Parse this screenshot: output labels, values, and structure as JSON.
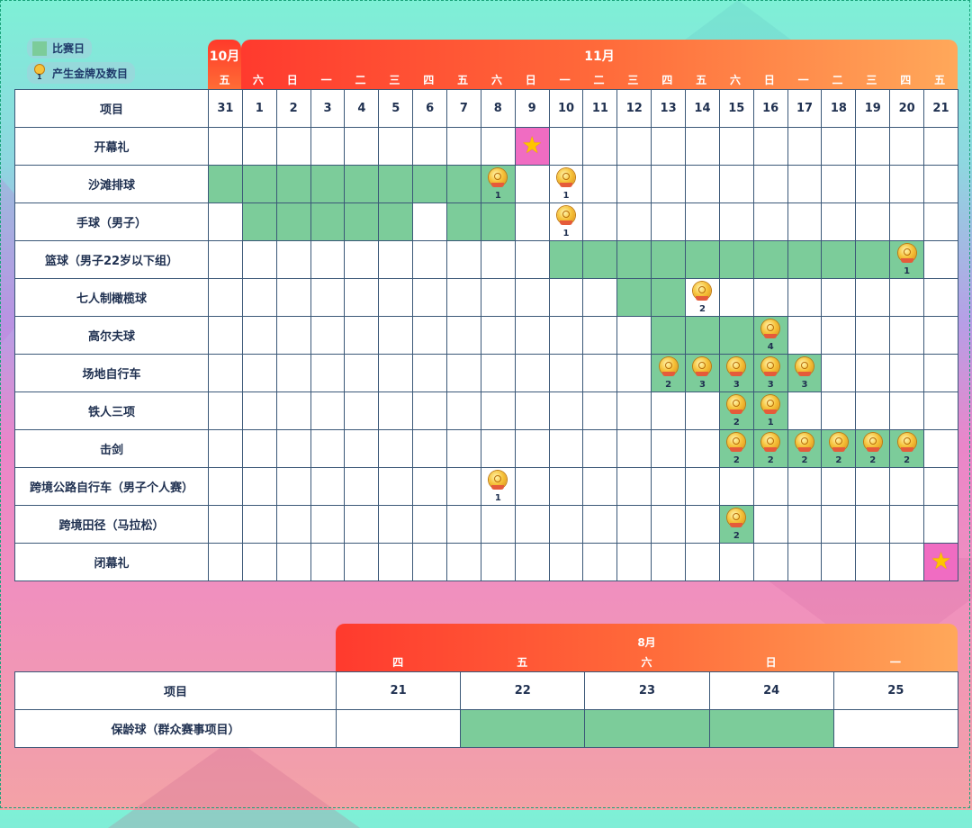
{
  "legend": {
    "match_day": "比赛日",
    "medals": "产生金牌及数目",
    "medal_icon_digit": "1"
  },
  "colors": {
    "match_day": "#7ccc9a",
    "ceremony": "#f06cc2",
    "header_start": "#ff3a2e",
    "header_end": "#ffa85a"
  },
  "months": {
    "oct": "10月",
    "nov": "11月",
    "aug": "8月"
  },
  "main_table": {
    "header_label": "项目",
    "weekdays": [
      "五",
      "六",
      "日",
      "一",
      "二",
      "三",
      "四",
      "五",
      "六",
      "日",
      "一",
      "二",
      "三",
      "四",
      "五",
      "六",
      "日",
      "一",
      "二",
      "三",
      "四",
      "五"
    ],
    "days": [
      "31",
      "1",
      "2",
      "3",
      "4",
      "5",
      "6",
      "7",
      "8",
      "9",
      "10",
      "11",
      "12",
      "13",
      "14",
      "15",
      "16",
      "17",
      "18",
      "19",
      "20",
      "21"
    ],
    "events": [
      {
        "name": "开幕礼",
        "active": [],
        "ceremony": [
          9
        ],
        "medals": {}
      },
      {
        "name": "沙滩排球",
        "active": [
          0,
          1,
          2,
          3,
          4,
          5,
          6,
          7,
          8
        ],
        "ceremony": [],
        "medals": {
          "8": "1",
          "10": "1"
        }
      },
      {
        "name": "手球（男子）",
        "active": [
          1,
          2,
          3,
          4,
          5,
          7,
          8
        ],
        "ceremony": [],
        "medals": {
          "10": "1"
        }
      },
      {
        "name": "篮球（男子22岁以下组）",
        "active": [
          10,
          11,
          12,
          13,
          14,
          15,
          16,
          17,
          18,
          19,
          20
        ],
        "ceremony": [],
        "medals": {
          "20": "1"
        }
      },
      {
        "name": "七人制橄榄球",
        "active": [
          12,
          13
        ],
        "ceremony": [],
        "medals": {
          "14": "2"
        }
      },
      {
        "name": "高尔夫球",
        "active": [
          13,
          14,
          15,
          16
        ],
        "ceremony": [],
        "medals": {
          "16": "4"
        }
      },
      {
        "name": "场地自行车",
        "active": [
          13,
          14,
          15,
          16,
          17
        ],
        "ceremony": [],
        "medals": {
          "13": "2",
          "14": "3",
          "15": "3",
          "16": "3",
          "17": "3"
        }
      },
      {
        "name": "铁人三项",
        "active": [
          15,
          16
        ],
        "ceremony": [],
        "medals": {
          "15": "2",
          "16": "1"
        }
      },
      {
        "name": "击剑",
        "active": [
          15,
          16,
          17,
          18,
          19,
          20
        ],
        "ceremony": [],
        "medals": {
          "15": "2",
          "16": "2",
          "17": "2",
          "18": "2",
          "19": "2",
          "20": "2"
        }
      },
      {
        "name": "跨境公路自行车（男子个人赛）",
        "active": [],
        "ceremony": [],
        "medals": {
          "8": "1"
        }
      },
      {
        "name": "跨境田径（马拉松）",
        "active": [
          15
        ],
        "ceremony": [],
        "medals": {
          "15": "2"
        }
      },
      {
        "name": "闭幕礼",
        "active": [],
        "ceremony": [
          21
        ],
        "medals": {}
      }
    ]
  },
  "bottom_table": {
    "header_label": "项目",
    "weekdays": [
      "四",
      "五",
      "六",
      "日",
      "一"
    ],
    "days": [
      "21",
      "22",
      "23",
      "24",
      "25"
    ],
    "events": [
      {
        "name": "保龄球（群众赛事项目）",
        "active": [
          1,
          2,
          3
        ]
      }
    ]
  }
}
